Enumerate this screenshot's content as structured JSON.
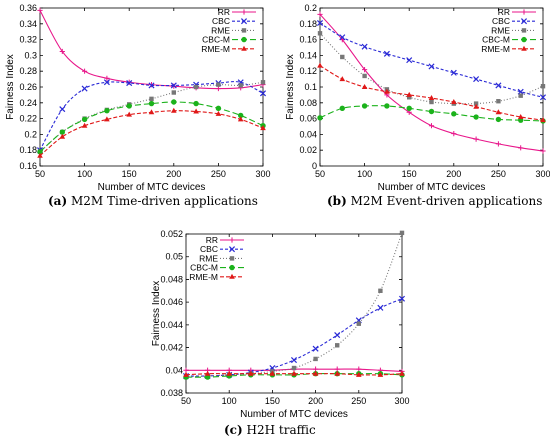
{
  "styles": {
    "RR": {
      "color": "#e8168a",
      "dash": "",
      "marker": "plus"
    },
    "CBC": {
      "color": "#2a2ad6",
      "dash": "3,2",
      "marker": "x"
    },
    "RME": {
      "color": "#777777",
      "dash": "1,2",
      "marker": "square"
    },
    "CBC-M": {
      "color": "#1bb21b",
      "dash": "6,3",
      "marker": "circle"
    },
    "RME-M": {
      "color": "#e01818",
      "dash": "4,2",
      "marker": "triangle"
    }
  },
  "chart_data": [
    {
      "type": "line",
      "caption_tag": "(a)",
      "caption_text": "M2M Time-driven applications",
      "xlabel": "Number of MTC devices",
      "ylabel": "Fairness Index",
      "xlim": [
        50,
        300
      ],
      "ylim": [
        0.16,
        0.36
      ],
      "xticks": [
        50,
        100,
        150,
        200,
        250,
        300
      ],
      "yticks": [
        0.16,
        0.18,
        0.2,
        0.22,
        0.24,
        0.26,
        0.28,
        0.3,
        0.32,
        0.34,
        0.36
      ],
      "x": [
        50,
        75,
        100,
        125,
        150,
        175,
        200,
        225,
        250,
        275,
        300
      ],
      "series": [
        {
          "name": "RR",
          "values": [
            0.357,
            0.305,
            0.28,
            0.271,
            0.266,
            0.263,
            0.261,
            0.259,
            0.258,
            0.259,
            0.263
          ]
        },
        {
          "name": "CBC",
          "values": [
            0.18,
            0.232,
            0.258,
            0.266,
            0.265,
            0.262,
            0.262,
            0.263,
            0.265,
            0.266,
            0.252
          ]
        },
        {
          "name": "RME",
          "values": [
            0.178,
            0.203,
            0.22,
            0.231,
            0.238,
            0.245,
            0.253,
            0.26,
            0.263,
            0.262,
            0.266
          ]
        },
        {
          "name": "CBC-M",
          "values": [
            0.178,
            0.203,
            0.219,
            0.23,
            0.236,
            0.239,
            0.241,
            0.239,
            0.233,
            0.224,
            0.211
          ]
        },
        {
          "name": "RME-M",
          "values": [
            0.173,
            0.197,
            0.211,
            0.219,
            0.225,
            0.228,
            0.23,
            0.229,
            0.226,
            0.219,
            0.208
          ]
        }
      ]
    },
    {
      "type": "line",
      "caption_tag": "(b)",
      "caption_text": "M2M Event-driven applications",
      "xlabel": "Number of MTC devices",
      "ylabel": "Fairness Index",
      "xlim": [
        50,
        300
      ],
      "ylim": [
        0,
        0.2
      ],
      "xticks": [
        50,
        100,
        150,
        200,
        250,
        300
      ],
      "yticks": [
        0,
        0.02,
        0.04,
        0.06,
        0.08,
        0.1,
        0.12,
        0.14,
        0.16,
        0.18,
        0.2
      ],
      "x": [
        50,
        75,
        100,
        125,
        150,
        175,
        200,
        225,
        250,
        275,
        300
      ],
      "series": [
        {
          "name": "RR",
          "values": [
            0.192,
            0.16,
            0.122,
            0.09,
            0.068,
            0.051,
            0.041,
            0.034,
            0.028,
            0.023,
            0.019
          ]
        },
        {
          "name": "CBC",
          "values": [
            0.181,
            0.163,
            0.151,
            0.142,
            0.134,
            0.126,
            0.118,
            0.11,
            0.102,
            0.094,
            0.087
          ]
        },
        {
          "name": "RME",
          "values": [
            0.168,
            0.138,
            0.114,
            0.097,
            0.087,
            0.081,
            0.079,
            0.079,
            0.082,
            0.089,
            0.101
          ]
        },
        {
          "name": "CBC-M",
          "values": [
            0.061,
            0.073,
            0.076,
            0.076,
            0.073,
            0.069,
            0.066,
            0.062,
            0.059,
            0.058,
            0.057
          ]
        },
        {
          "name": "RME-M",
          "values": [
            0.127,
            0.11,
            0.1,
            0.094,
            0.09,
            0.086,
            0.081,
            0.075,
            0.068,
            0.062,
            0.058
          ]
        }
      ]
    },
    {
      "type": "line",
      "caption_tag": "(c)",
      "caption_text": "H2H traffic",
      "xlabel": "Number of MTC devices",
      "ylabel": "Fairness Index",
      "xlim": [
        50,
        300
      ],
      "ylim": [
        0.038,
        0.052
      ],
      "xticks": [
        50,
        100,
        150,
        200,
        250,
        300
      ],
      "yticks": [
        0.038,
        0.04,
        0.042,
        0.044,
        0.046,
        0.048,
        0.05,
        0.052
      ],
      "x": [
        50,
        75,
        100,
        125,
        150,
        175,
        200,
        225,
        250,
        275,
        300
      ],
      "series": [
        {
          "name": "RR",
          "values": [
            0.04,
            0.04,
            0.04,
            0.04,
            0.04,
            0.0401,
            0.0401,
            0.0401,
            0.0401,
            0.04,
            0.0399
          ]
        },
        {
          "name": "CBC",
          "values": [
            0.0395,
            0.0395,
            0.0396,
            0.0398,
            0.0402,
            0.0409,
            0.0419,
            0.0431,
            0.0444,
            0.0455,
            0.0463
          ]
        },
        {
          "name": "RME",
          "values": [
            0.0394,
            0.0395,
            0.0396,
            0.0397,
            0.0399,
            0.0402,
            0.041,
            0.0422,
            0.0441,
            0.047,
            0.0521
          ]
        },
        {
          "name": "CBC-M",
          "values": [
            0.0394,
            0.0394,
            0.0395,
            0.0396,
            0.0396,
            0.0396,
            0.0397,
            0.0397,
            0.0397,
            0.0397,
            0.0396
          ]
        },
        {
          "name": "RME-M",
          "values": [
            0.0396,
            0.0397,
            0.0397,
            0.0397,
            0.0397,
            0.0397,
            0.0397,
            0.0397,
            0.0396,
            0.0396,
            0.0397
          ]
        }
      ]
    }
  ]
}
